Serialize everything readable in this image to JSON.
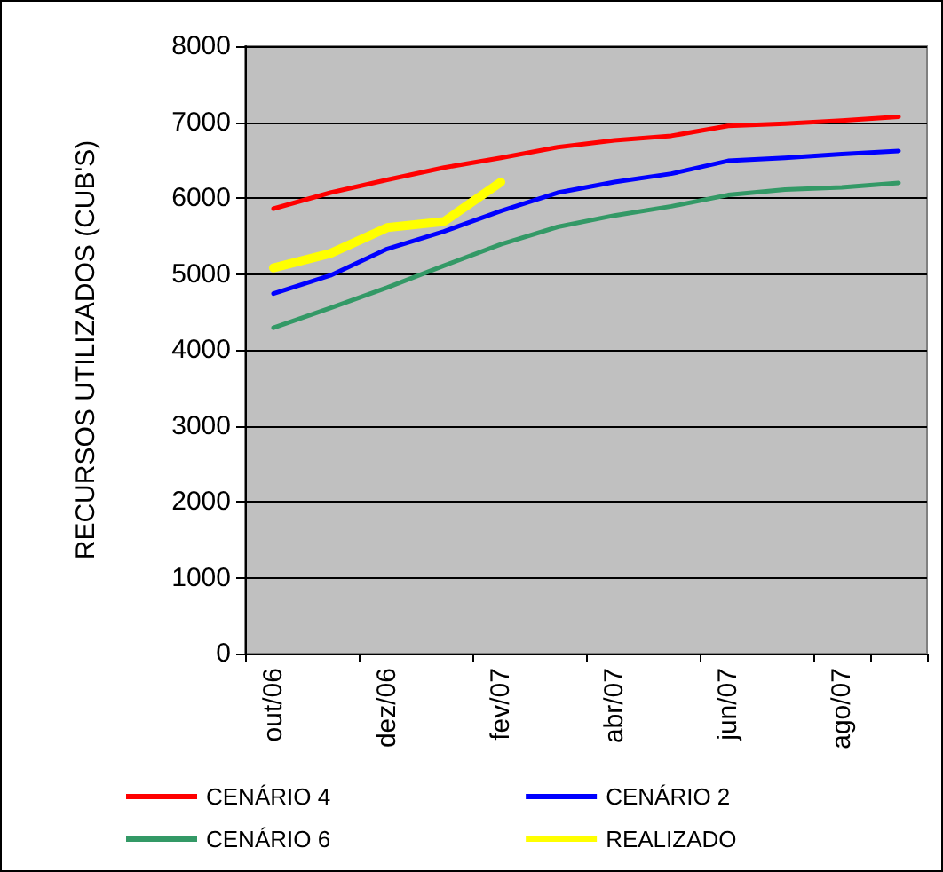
{
  "chart_data": {
    "type": "line",
    "ylabel": "RECURSOS UTILIZADOS (CUB'S)",
    "categories": [
      "out/06",
      null,
      "dez/06",
      null,
      "fev/07",
      null,
      "abr/07",
      null,
      "jun/07",
      null,
      "ago/07",
      null
    ],
    "series": [
      {
        "name": "CENÁRIO 4",
        "color": "#ff0000",
        "values": [
          5860,
          6070,
          6240,
          6400,
          6530,
          6670,
          6760,
          6820,
          6950,
          6980,
          7020,
          7070
        ]
      },
      {
        "name": "CENÁRIO 2",
        "color": "#0000ff",
        "values": [
          4740,
          4980,
          5330,
          5560,
          5830,
          6070,
          6210,
          6320,
          6490,
          6530,
          6580,
          6620
        ]
      },
      {
        "name": "CENÁRIO 6",
        "color": "#339966",
        "values": [
          4290,
          4550,
          4820,
          5110,
          5390,
          5620,
          5770,
          5890,
          6040,
          6110,
          6140,
          6200
        ]
      },
      {
        "name": "REALIZADO",
        "color": "#ffff00",
        "values": [
          5080,
          5270,
          5610,
          5690,
          6210,
          null,
          null,
          null,
          null,
          null,
          null,
          null
        ]
      }
    ],
    "ylim": [
      0,
      8000
    ],
    "yticks": [
      0,
      1000,
      2000,
      3000,
      4000,
      5000,
      6000,
      7000,
      8000
    ],
    "grid": "y",
    "legend": "bottom",
    "marker": "none",
    "line_style": "solid"
  }
}
